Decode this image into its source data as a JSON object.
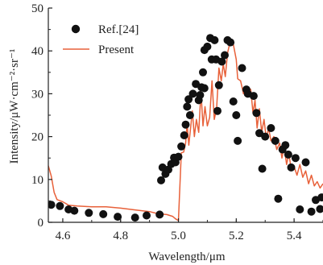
{
  "chart_data": {
    "type": "scatter+line",
    "xlabel": "Wavelength/μm",
    "ylabel": "Intensity/μW·cm⁻²·sr⁻¹",
    "xlim": [
      4.55,
      5.5
    ],
    "ylim": [
      0,
      50
    ],
    "x_ticks": [
      "4.6",
      "4.8",
      "5.0",
      "5.2",
      "5.4"
    ],
    "x_tick_values": [
      4.6,
      4.8,
      5.0,
      5.2,
      5.4
    ],
    "y_ticks": [
      "0",
      "10",
      "20",
      "30",
      "40",
      "50"
    ],
    "y_tick_values": [
      0,
      10,
      20,
      30,
      40,
      50
    ],
    "grid": false,
    "legend_position": "top-left",
    "colors": {
      "ref": "#111111",
      "present": "#e8613a",
      "axis": "#222222"
    },
    "series": [
      {
        "name": "Ref.[24]",
        "style": "markers",
        "points": [
          [
            4.56,
            4.1
          ],
          [
            4.59,
            3.8
          ],
          [
            4.62,
            3.0
          ],
          [
            4.64,
            2.7
          ],
          [
            4.69,
            2.2
          ],
          [
            4.74,
            1.9
          ],
          [
            4.79,
            1.3
          ],
          [
            4.85,
            1.1
          ],
          [
            4.89,
            1.6
          ],
          [
            4.935,
            1.8
          ],
          [
            4.94,
            9.8
          ],
          [
            4.945,
            12.8
          ],
          [
            4.955,
            11.3
          ],
          [
            4.965,
            12.3
          ],
          [
            4.975,
            13.6
          ],
          [
            4.985,
            15.1
          ],
          [
            4.99,
            14.0
          ],
          [
            5.0,
            15.3
          ],
          [
            5.01,
            17.7
          ],
          [
            5.02,
            20.3
          ],
          [
            5.025,
            22.8
          ],
          [
            5.03,
            27.0
          ],
          [
            5.035,
            28.7
          ],
          [
            5.04,
            25.0
          ],
          [
            5.05,
            30.0
          ],
          [
            5.06,
            32.3
          ],
          [
            5.07,
            28.5
          ],
          [
            5.075,
            29.7
          ],
          [
            5.08,
            31.5
          ],
          [
            5.09,
            31.3
          ],
          [
            5.085,
            35.0
          ],
          [
            5.09,
            40.2
          ],
          [
            5.1,
            41.0
          ],
          [
            5.11,
            43.0
          ],
          [
            5.115,
            38.0
          ],
          [
            5.125,
            42.5
          ],
          [
            5.13,
            38.0
          ],
          [
            5.135,
            26.0
          ],
          [
            5.14,
            32.0
          ],
          [
            5.15,
            37.5
          ],
          [
            5.16,
            39.0
          ],
          [
            5.17,
            42.5
          ],
          [
            5.18,
            42.0
          ],
          [
            5.19,
            28.2
          ],
          [
            5.2,
            25.0
          ],
          [
            5.205,
            19.0
          ],
          [
            5.22,
            36.0
          ],
          [
            5.235,
            31.0
          ],
          [
            5.24,
            30.0
          ],
          [
            5.26,
            29.5
          ],
          [
            5.27,
            25.5
          ],
          [
            5.28,
            20.8
          ],
          [
            5.29,
            12.5
          ],
          [
            5.3,
            20.0
          ],
          [
            5.32,
            22.0
          ],
          [
            5.335,
            19.0
          ],
          [
            5.345,
            5.5
          ],
          [
            5.36,
            17.0
          ],
          [
            5.37,
            18.0
          ],
          [
            5.38,
            15.8
          ],
          [
            5.39,
            12.8
          ],
          [
            5.405,
            15.0
          ],
          [
            5.42,
            3.0
          ],
          [
            5.44,
            14.0
          ],
          [
            5.46,
            2.5
          ],
          [
            5.475,
            5.2
          ],
          [
            5.49,
            3.1
          ],
          [
            5.495,
            5.8
          ]
        ]
      },
      {
        "name": "Present",
        "style": "line",
        "points": [
          [
            4.55,
            13.2
          ],
          [
            4.56,
            10.8
          ],
          [
            4.57,
            7.0
          ],
          [
            4.58,
            5.3
          ],
          [
            4.6,
            4.8
          ],
          [
            4.62,
            4.0
          ],
          [
            4.65,
            3.8
          ],
          [
            4.7,
            3.6
          ],
          [
            4.75,
            3.6
          ],
          [
            4.8,
            3.3
          ],
          [
            4.85,
            2.9
          ],
          [
            4.9,
            2.5
          ],
          [
            4.93,
            2.0
          ],
          [
            4.96,
            1.8
          ],
          [
            4.98,
            1.4
          ],
          [
            4.99,
            0.8
          ],
          [
            5.0,
            0.4
          ],
          [
            5.01,
            16.2
          ],
          [
            5.018,
            16.4
          ],
          [
            5.025,
            18.5
          ],
          [
            5.03,
            23.0
          ],
          [
            5.036,
            18.0
          ],
          [
            5.042,
            22.0
          ],
          [
            5.048,
            26.0
          ],
          [
            5.055,
            20.0
          ],
          [
            5.062,
            24.0
          ],
          [
            5.07,
            21.0
          ],
          [
            5.078,
            30.5
          ],
          [
            5.085,
            22.5
          ],
          [
            5.092,
            27.0
          ],
          [
            5.1,
            22.5
          ],
          [
            5.108,
            24.5
          ],
          [
            5.116,
            33.0
          ],
          [
            5.124,
            24.0
          ],
          [
            5.132,
            26.5
          ],
          [
            5.14,
            36.0
          ],
          [
            5.148,
            33.0
          ],
          [
            5.155,
            37.0
          ],
          [
            5.162,
            34.0
          ],
          [
            5.17,
            39.5
          ],
          [
            5.18,
            42.5
          ],
          [
            5.19,
            41.5
          ],
          [
            5.2,
            38.0
          ],
          [
            5.205,
            33.5
          ],
          [
            5.215,
            33.0
          ],
          [
            5.225,
            30.0
          ],
          [
            5.23,
            31.5
          ],
          [
            5.24,
            31.5
          ],
          [
            5.25,
            31.0
          ],
          [
            5.258,
            25.5
          ],
          [
            5.265,
            28.5
          ],
          [
            5.272,
            22.0
          ],
          [
            5.28,
            26.5
          ],
          [
            5.288,
            21.0
          ],
          [
            5.296,
            24.0
          ],
          [
            5.304,
            19.5
          ],
          [
            5.312,
            22.0
          ],
          [
            5.32,
            19.0
          ],
          [
            5.33,
            20.0
          ],
          [
            5.34,
            17.0
          ],
          [
            5.35,
            18.5
          ],
          [
            5.358,
            15.0
          ],
          [
            5.366,
            17.5
          ],
          [
            5.374,
            13.5
          ],
          [
            5.382,
            16.0
          ],
          [
            5.39,
            12.5
          ],
          [
            5.4,
            13.0
          ],
          [
            5.41,
            11.0
          ],
          [
            5.42,
            13.5
          ],
          [
            5.43,
            10.5
          ],
          [
            5.44,
            12.0
          ],
          [
            5.45,
            9.0
          ],
          [
            5.46,
            11.0
          ],
          [
            5.47,
            8.5
          ],
          [
            5.48,
            9.5
          ],
          [
            5.49,
            8.0
          ],
          [
            5.5,
            9.0
          ]
        ]
      }
    ]
  }
}
